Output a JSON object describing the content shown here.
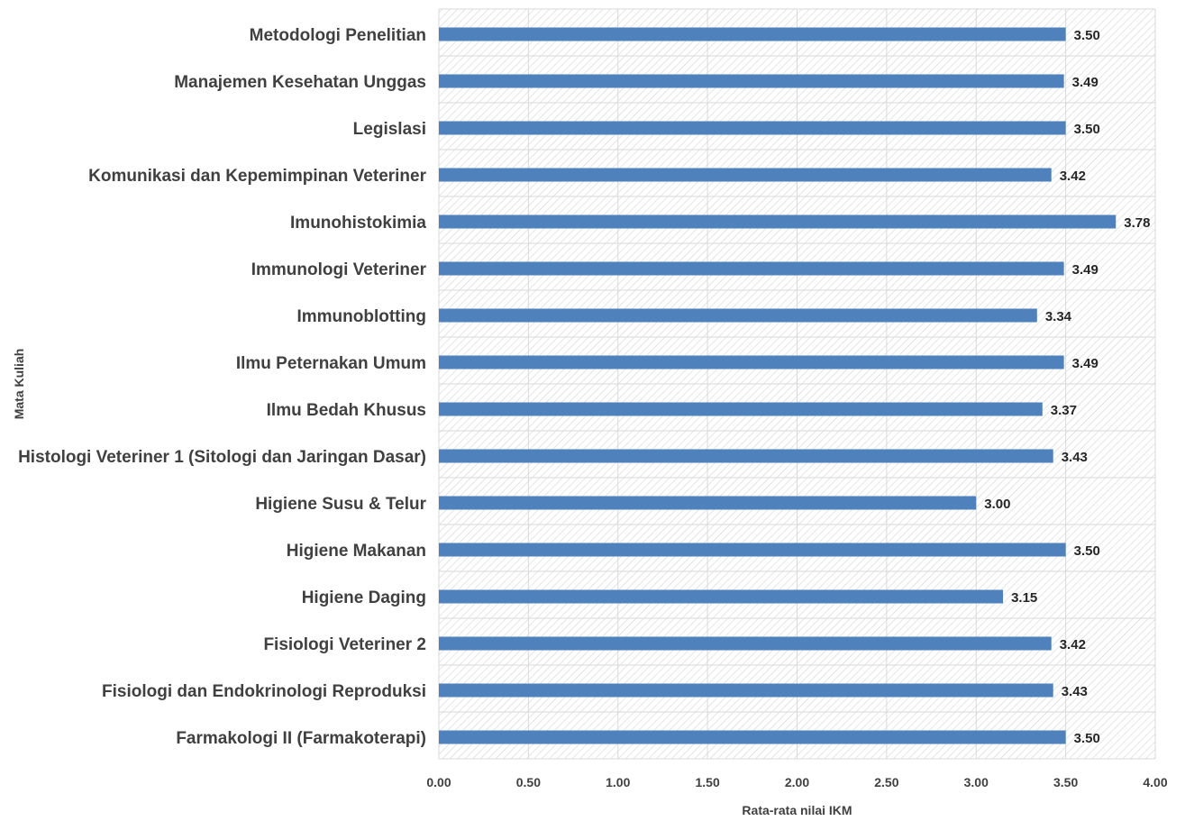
{
  "chart_data": {
    "type": "bar",
    "orientation": "horizontal",
    "categories": [
      "Metodologi Penelitian",
      "Manajemen Kesehatan Unggas",
      "Legislasi",
      "Komunikasi dan Kepemimpinan Veteriner",
      "Imunohistokimia",
      "Immunologi Veteriner",
      "Immunoblotting",
      "Ilmu Peternakan Umum",
      "Ilmu Bedah Khusus",
      "Histologi Veteriner 1 (Sitologi dan Jaringan Dasar)",
      "Higiene Susu & Telur",
      "Higiene Makanan",
      "Higiene Daging",
      "Fisiologi Veteriner 2",
      "Fisiologi dan Endokrinologi Reproduksi",
      "Farmakologi II (Farmakoterapi)"
    ],
    "values": [
      3.5,
      3.49,
      3.5,
      3.42,
      3.78,
      3.49,
      3.34,
      3.49,
      3.37,
      3.43,
      3.0,
      3.5,
      3.15,
      3.42,
      3.43,
      3.5
    ],
    "data_labels": [
      "3.50",
      "3.49",
      "3.50",
      "3.42",
      "3.78",
      "3.49",
      "3.34",
      "3.49",
      "3.37",
      "3.43",
      "3.00",
      "3.50",
      "3.15",
      "3.42",
      "3.43",
      "3.50"
    ],
    "x_ticks": [
      "0.00",
      "0.50",
      "1.00",
      "1.50",
      "2.00",
      "2.50",
      "3.00",
      "3.50",
      "4.00"
    ],
    "xlim": [
      0,
      4
    ],
    "xlabel": "Rata-rata nilai IKM",
    "ylabel": "Mata Kuliah",
    "title": "",
    "bar_color": "#4f81bd",
    "grid": true,
    "background": "hatched"
  }
}
